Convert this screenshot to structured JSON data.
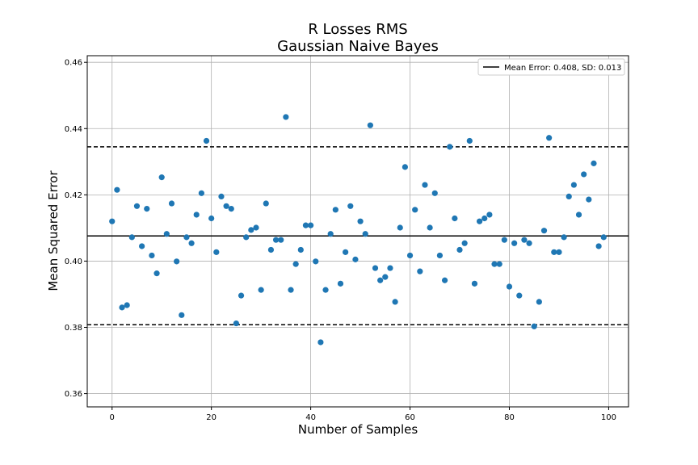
{
  "chart_data": {
    "type": "scatter",
    "title": [
      "R Losses RMS",
      "Gaussian Naive Bayes"
    ],
    "xlabel": "Number of Samples",
    "ylabel": "Mean Squared Error",
    "xlim": [
      -5,
      104
    ],
    "ylim": [
      0.356,
      0.462
    ],
    "xticks": [
      0,
      20,
      40,
      60,
      80,
      100
    ],
    "yticks": [
      0.36,
      0.38,
      0.4,
      0.42,
      0.44,
      0.46
    ],
    "ytick_labels": [
      "0.36",
      "0.38",
      "0.40",
      "0.42",
      "0.44",
      "0.46"
    ],
    "grid": true,
    "legend_position": "top-right",
    "legend_label": "Mean Error: 0.408, SD: 0.013",
    "mean_line": 0.4076,
    "sd_upper": 0.4345,
    "sd_lower": 0.3808,
    "marker_color": "#1f77b4",
    "x": [
      0,
      1,
      2,
      3,
      4,
      5,
      6,
      7,
      8,
      9,
      10,
      11,
      12,
      13,
      14,
      15,
      16,
      17,
      18,
      19,
      20,
      21,
      22,
      23,
      24,
      25,
      26,
      27,
      28,
      29,
      30,
      31,
      32,
      33,
      34,
      35,
      36,
      37,
      38,
      39,
      40,
      41,
      42,
      43,
      44,
      45,
      46,
      47,
      48,
      49,
      50,
      51,
      52,
      53,
      54,
      55,
      56,
      57,
      58,
      59,
      60,
      61,
      62,
      63,
      64,
      65,
      66,
      67,
      68,
      69,
      70,
      71,
      72,
      73,
      74,
      75,
      76,
      77,
      78,
      79,
      80,
      81,
      82,
      83,
      84,
      85,
      86,
      87,
      88,
      89,
      90,
      91,
      92,
      93,
      94,
      95,
      96,
      97,
      98,
      99
    ],
    "y": [
      0.412,
      0.4215,
      0.386,
      0.3867,
      0.4072,
      0.4166,
      0.4045,
      0.4158,
      0.4017,
      0.3963,
      0.4253,
      0.4082,
      0.4174,
      0.3999,
      0.3837,
      0.4072,
      0.4054,
      0.414,
      0.4205,
      0.4363,
      0.4129,
      0.4027,
      0.4195,
      0.4166,
      0.4158,
      0.3812,
      0.3896,
      0.4072,
      0.4094,
      0.4101,
      0.3913,
      0.4174,
      0.4034,
      0.4064,
      0.4064,
      0.4435,
      0.3913,
      0.3991,
      0.4034,
      0.4108,
      0.4108,
      0.3999,
      0.3755,
      0.3913,
      0.4082,
      0.4155,
      0.3932,
      0.4027,
      0.4166,
      0.4005,
      0.412,
      0.4082,
      0.441,
      0.3979,
      0.3942,
      0.3952,
      0.3979,
      0.3877,
      0.4101,
      0.4284,
      0.4017,
      0.4155,
      0.3969,
      0.423,
      0.4101,
      0.4205,
      0.4017,
      0.3942,
      0.4345,
      0.4129,
      0.4034,
      0.4054,
      0.4363,
      0.3932,
      0.412,
      0.4129,
      0.414,
      0.3991,
      0.3991,
      0.4064,
      0.3923,
      0.4054,
      0.3896,
      0.4064,
      0.4054,
      0.3803,
      0.3877,
      0.4092,
      0.4372,
      0.4027,
      0.4027,
      0.4072,
      0.4195,
      0.423,
      0.414,
      0.4262,
      0.4186,
      0.4295,
      0.4045,
      0.4072
    ]
  }
}
